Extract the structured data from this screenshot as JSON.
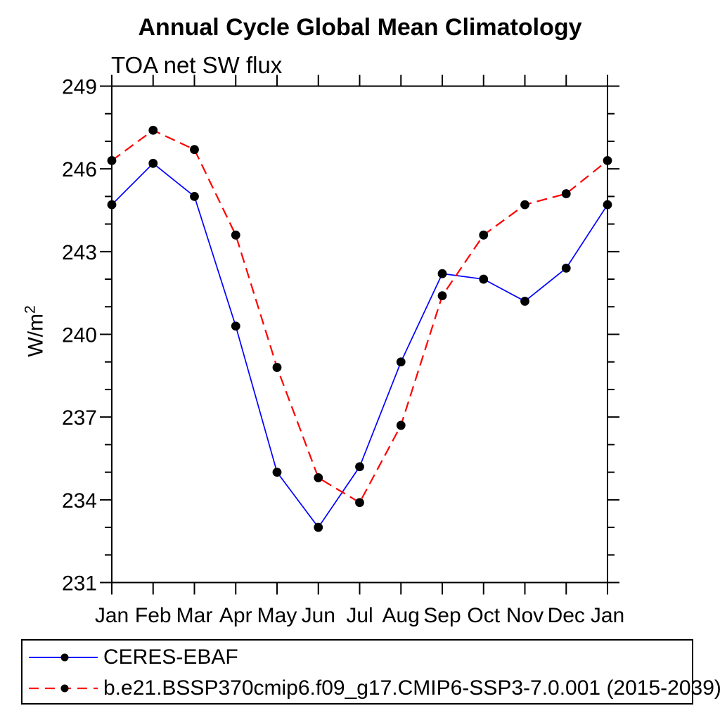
{
  "chart_data": {
    "type": "line",
    "title": "Annual Cycle Global Mean Climatology",
    "subtitle": "TOA net SW flux",
    "ylabel": {
      "base": "W/m",
      "exponent": "2"
    },
    "categories": [
      "Jan",
      "Feb",
      "Mar",
      "Apr",
      "May",
      "Jun",
      "Jul",
      "Aug",
      "Sep",
      "Oct",
      "Nov",
      "Dec",
      "Jan"
    ],
    "series": [
      {
        "name": "CERES-EBAF",
        "color": "#0000ff",
        "line_style": "solid",
        "marker": "filled-circle",
        "marker_color": "#000000",
        "values": [
          244.7,
          246.2,
          245.0,
          240.3,
          235.0,
          233.0,
          235.2,
          239.0,
          242.2,
          242.0,
          241.2,
          242.4,
          244.7
        ]
      },
      {
        "name": "b.e21.BSSP370cmip6.f09_g17.CMIP6-SSP3-7.0.001 (2015-2039)",
        "color": "#ff0000",
        "line_style": "dashed",
        "marker": "filled-circle",
        "marker_color": "#000000",
        "values": [
          246.3,
          247.4,
          246.7,
          243.6,
          238.8,
          234.8,
          233.9,
          236.7,
          241.4,
          243.6,
          244.7,
          245.1,
          246.3
        ]
      }
    ],
    "ylim": [
      231,
      249
    ],
    "yticks": [
      231,
      234,
      237,
      240,
      243,
      246,
      249
    ],
    "ytick_minor_step": 1,
    "xtick_labels_all_major": true,
    "grid": false,
    "axis_color": "#000000",
    "background_color": "#ffffff",
    "legend_position": "bottom-left-box"
  }
}
